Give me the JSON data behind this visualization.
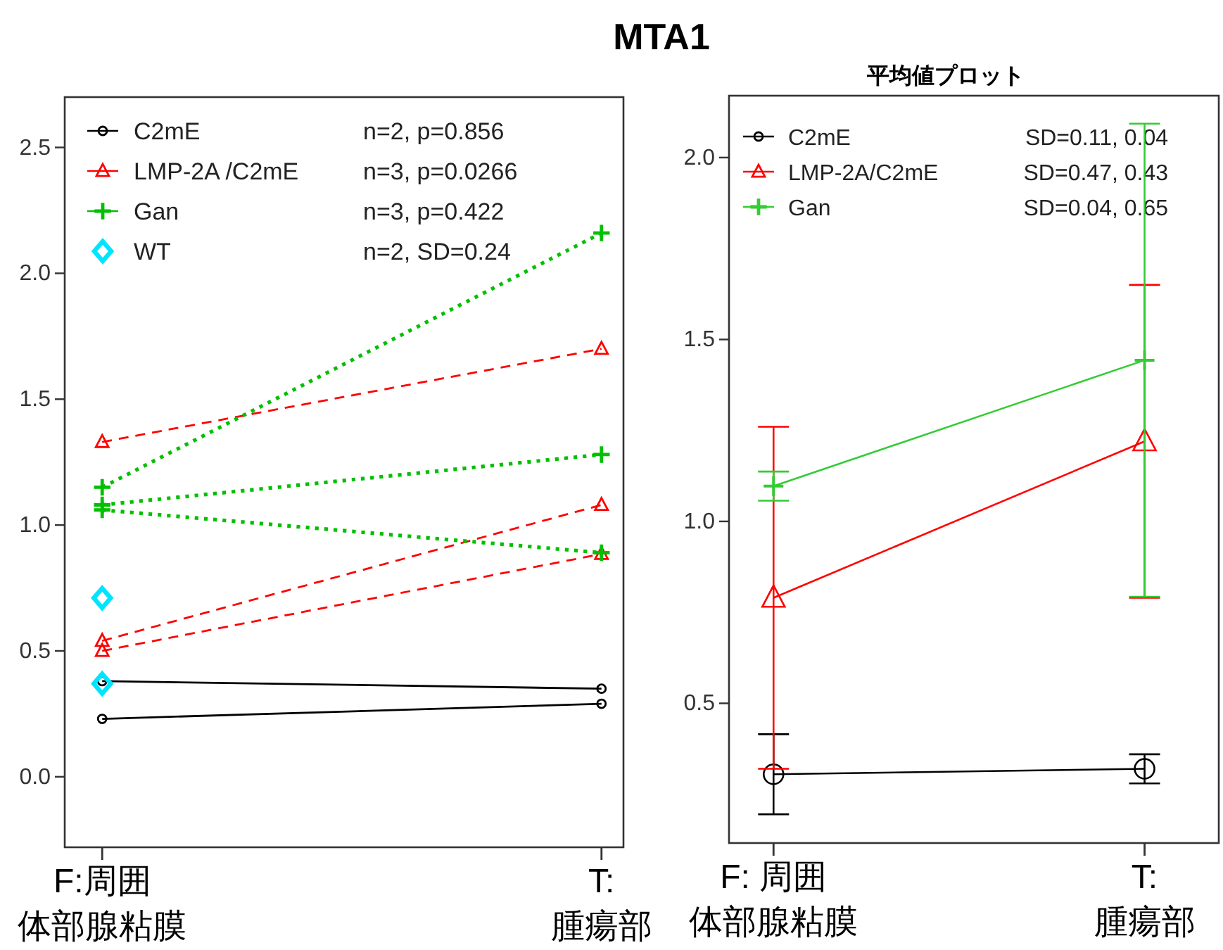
{
  "chart_data": [
    {
      "type": "line",
      "title": "MTA1",
      "categories": [
        "F:周囲体部腺粘膜",
        "T:腫瘍部"
      ],
      "ylim": [
        -0.28,
        2.7
      ],
      "yticks": [
        {
          "value": 0,
          "label": "0.0"
        },
        {
          "value": 0.5,
          "label": "0.5"
        },
        {
          "value": 1,
          "label": "1.0"
        },
        {
          "value": 1.5,
          "label": "1.5"
        },
        {
          "value": 2,
          "label": "2.0"
        },
        {
          "value": 2.5,
          "label": "2.5"
        }
      ],
      "legend": "top left",
      "grid": false,
      "annotations": [
        "n=2, p=0.856",
        "n=3, p=0.0266",
        "n=3, p=0.422",
        "n=2, SD=0.24"
      ],
      "series": [
        {
          "name": "C2mE",
          "color": "#000000",
          "values": [
            0.38,
            0.35
          ],
          "marker": "circle",
          "line_style": "solid"
        },
        {
          "color": "#000000",
          "values": [
            0.23,
            0.29
          ],
          "marker": "circle",
          "line_style": "solid"
        },
        {
          "name": "LMP-2A /C2mE",
          "color": "#ff0000",
          "values": [
            1.33,
            1.7
          ],
          "marker": "triangle",
          "line_style": "dashed"
        },
        {
          "color": "#ff0000",
          "values": [
            0.54,
            1.08
          ],
          "marker": "triangle",
          "line_style": "dashed"
        },
        {
          "color": "#ff0000",
          "values": [
            0.5,
            0.885
          ],
          "marker": "triangle",
          "line_style": "dashed"
        },
        {
          "name": "Gan",
          "color": "#00c000",
          "values": [
            1.15,
            2.16
          ],
          "marker": "cross",
          "line_style": "dotted"
        },
        {
          "color": "#00c000",
          "values": [
            1.08,
            1.28
          ],
          "marker": "cross",
          "line_style": "dotted"
        },
        {
          "color": "#00c000",
          "values": [
            1.06,
            0.89
          ],
          "marker": "cross",
          "line_style": "dotted"
        },
        {
          "name": "WT",
          "type": "scatter",
          "color": "#00e5ff",
          "values": [
            0.71,
            null
          ],
          "marker": "diamond"
        },
        {
          "type": "scatter",
          "color": "#00e5ff",
          "values": [
            0.37,
            null
          ],
          "marker": "diamond"
        }
      ]
    },
    {
      "type": "line",
      "title": "平均値プロット",
      "categories": [
        "F: 周囲体部腺粘膜",
        "T:腫瘍部"
      ],
      "ylim": [
        0.116,
        2.17
      ],
      "yticks": [
        {
          "value": 0.5,
          "label": "0.5"
        },
        {
          "value": 1,
          "label": "1.0"
        },
        {
          "value": 1.5,
          "label": "1.5"
        },
        {
          "value": 2,
          "label": "2.0"
        }
      ],
      "legend": "top left",
      "grid": false,
      "annotations": [
        "SD=0.11, 0.04",
        "SD=0.47, 0.43",
        "SD=0.04, 0.65"
      ],
      "series": [
        {
          "name": "C2mE",
          "color": "#000000",
          "values": [
            0.305,
            0.32
          ],
          "errors": [
            0.11,
            0.04
          ],
          "marker": "circle",
          "line_style": "solid"
        },
        {
          "name": "LMP-2A/C2mE",
          "color": "#ff0000",
          "values": [
            0.79,
            1.22
          ],
          "errors": [
            0.47,
            0.43
          ],
          "marker": "triangle",
          "line_style": "solid"
        },
        {
          "name": "Gan",
          "color": "#33cc33",
          "values": [
            1.097,
            1.443
          ],
          "errors": [
            0.04,
            0.65
          ],
          "marker": "cross",
          "line_style": "solid"
        }
      ]
    }
  ]
}
